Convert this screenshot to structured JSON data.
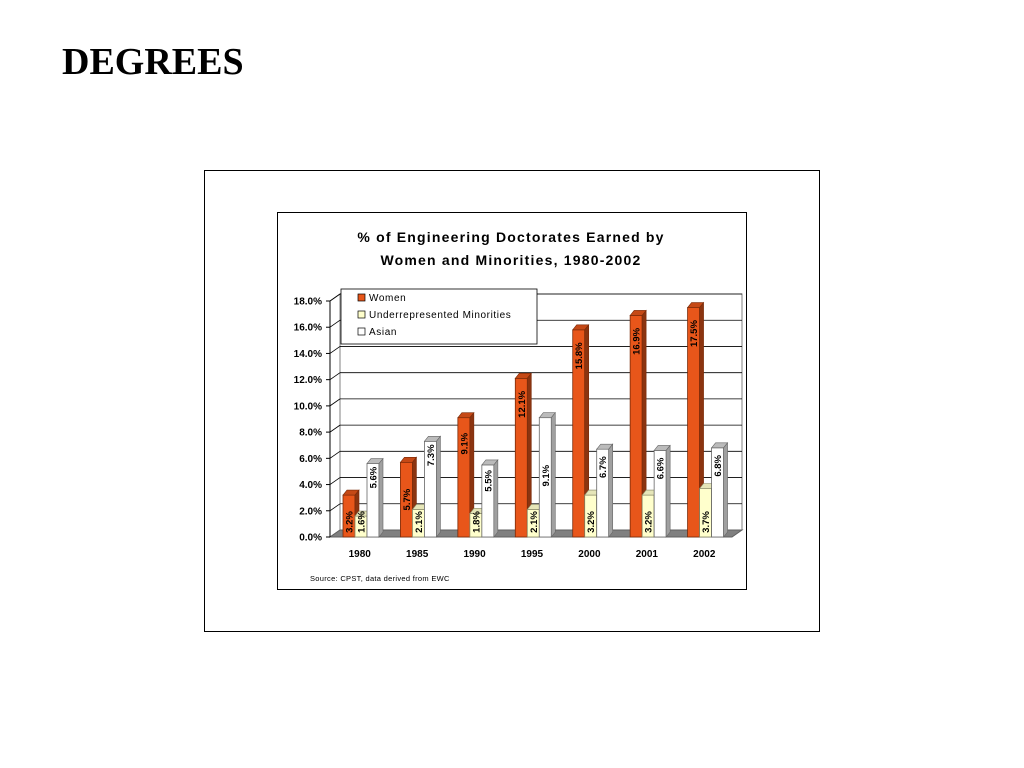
{
  "page": {
    "title": "DEGREES"
  },
  "chart_data": {
    "type": "bar",
    "title": [
      "% of Engineering Doctorates Earned by",
      "Women and Minorities, 1980-2002"
    ],
    "categories": [
      "1980",
      "1985",
      "1990",
      "1995",
      "2000",
      "2001",
      "2002"
    ],
    "series": [
      {
        "name": "Women",
        "values": [
          3.2,
          5.7,
          9.1,
          12.1,
          15.8,
          16.9,
          17.5
        ],
        "color": "#E8561A",
        "labels": [
          "3.2%",
          "5.7%",
          "9.1%",
          "12.1%",
          "15.8%",
          "16.9%",
          "17.5%"
        ]
      },
      {
        "name": "Underrepresented Minorities",
        "values": [
          1.6,
          2.1,
          1.8,
          2.1,
          3.2,
          3.2,
          3.7
        ],
        "color": "#FFFFCC",
        "labels": [
          "1.6%",
          "2.1%",
          "1.8%",
          "2.1%",
          "3.2%",
          "3.2%",
          "3.7%"
        ]
      },
      {
        "name": "Asian",
        "values": [
          5.6,
          7.3,
          5.5,
          9.1,
          6.7,
          6.6,
          6.8
        ],
        "color": "#FFFFFF",
        "labels": [
          "5.6%",
          "7.3%",
          "5.5%",
          "9.1%",
          "6.7%",
          "6.6%",
          "6.8%"
        ]
      }
    ],
    "ylim": [
      0,
      18
    ],
    "yticks": [
      "0.0%",
      "2.0%",
      "4.0%",
      "6.0%",
      "8.0%",
      "10.0%",
      "12.0%",
      "14.0%",
      "16.0%",
      "18.0%"
    ],
    "grid": true,
    "legend_position": "top-left",
    "source": "Source:  CPST, data derived from EWC"
  }
}
